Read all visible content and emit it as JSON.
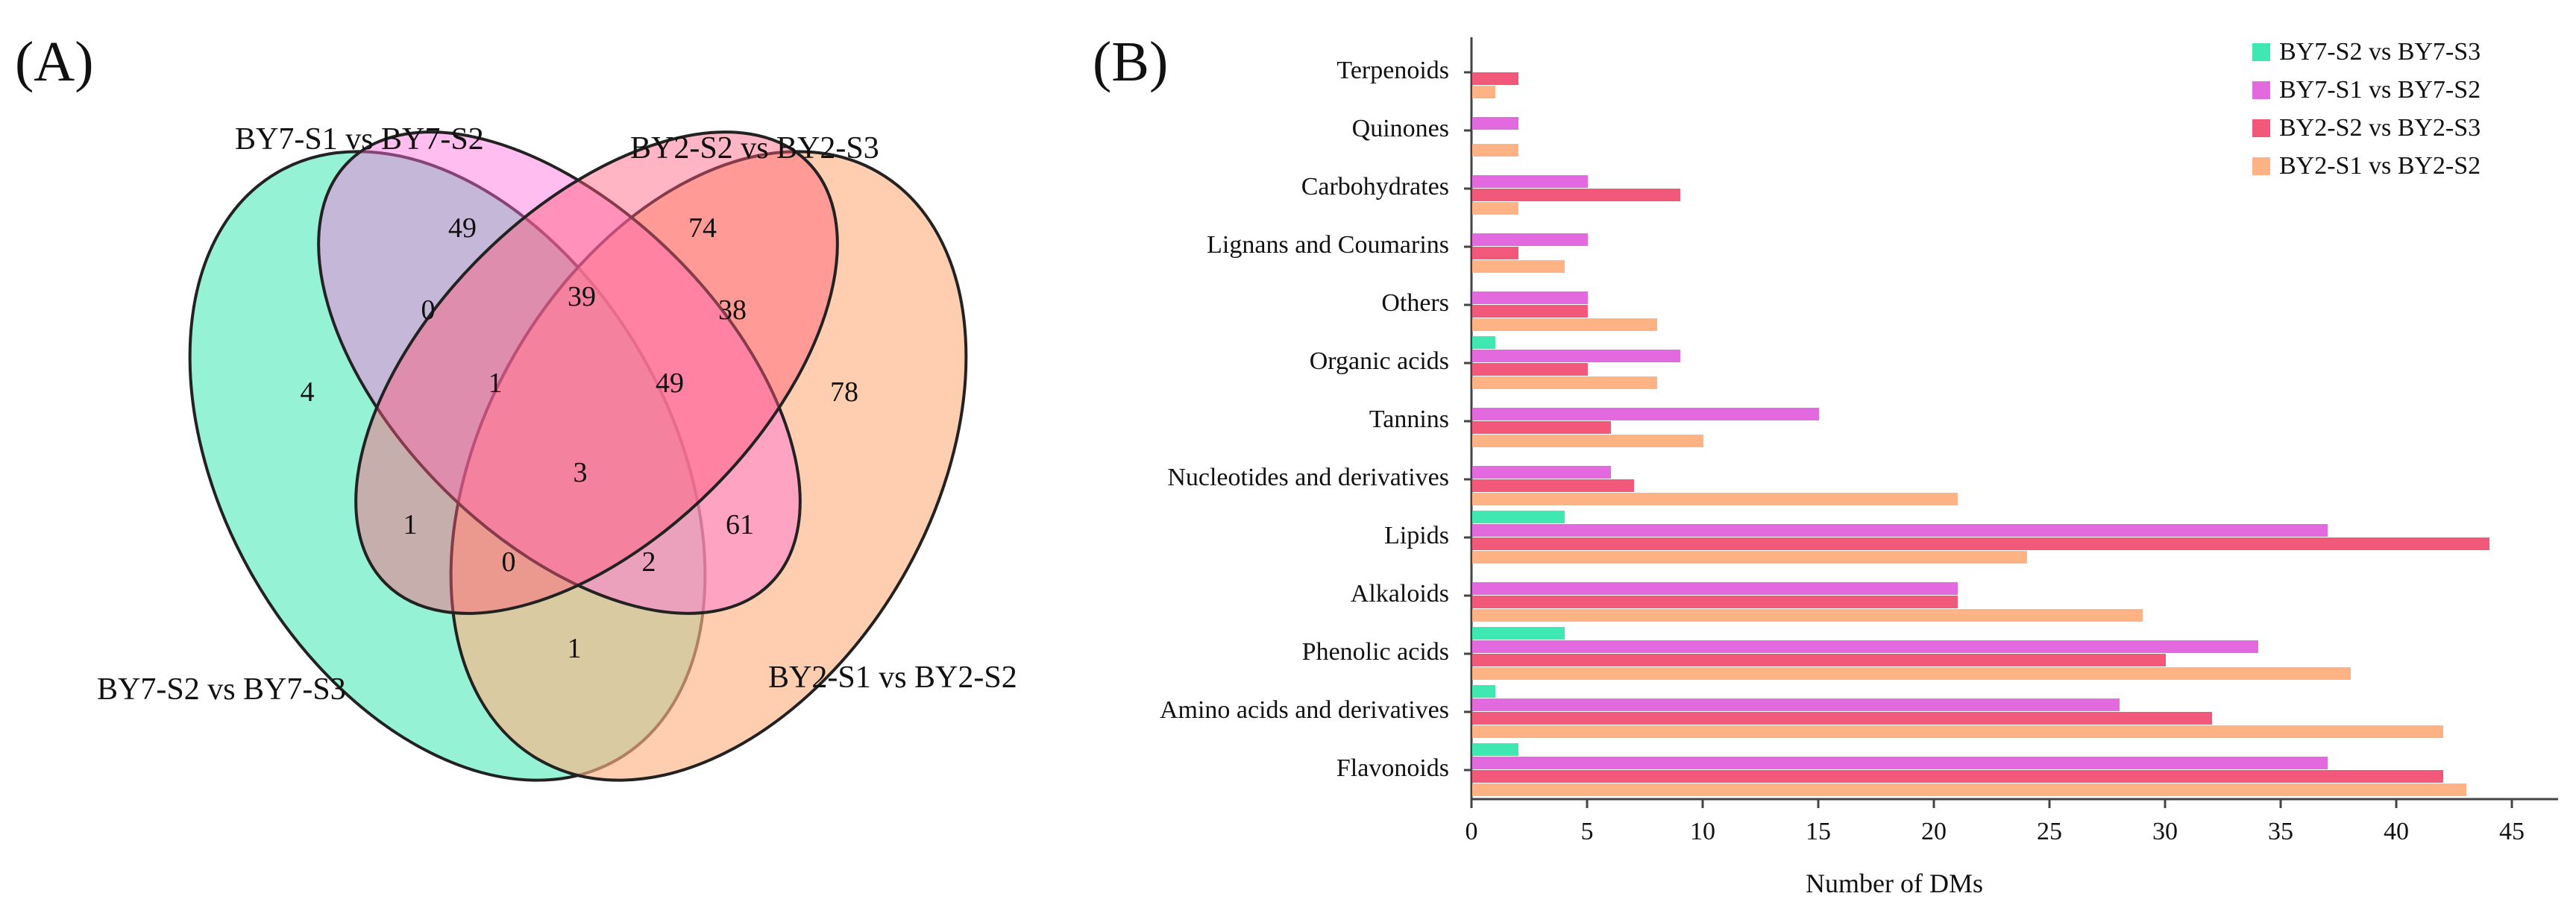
{
  "colors": {
    "BY7-S2 vs BY7-S3": "#3ee8b0",
    "BY7-S1 vs BY7-S2": "#e26ade",
    "BY2-S2 vs BY2-S3": "#f2587a",
    "BY2-S1 vs BY2-S2": "#ffb385",
    "axis": "#444444",
    "text": "#111111"
  },
  "chart_data": [
    {
      "type": "venn",
      "panel_label": "(A)",
      "sets": [
        "BY7-S1 vs BY7-S2",
        "BY2-S2 vs BY2-S3",
        "BY7-S2 vs BY7-S3",
        "BY2-S1 vs BY2-S2"
      ],
      "regions": {
        "only_BY7-S2_vs_BY7-S3": 4,
        "only_BY7-S1_vs_BY7-S2": 49,
        "only_BY2-S2_vs_BY2-S3": 74,
        "only_BY2-S1_vs_BY2-S2": 78,
        "BY7S2S3_BY7S1S2": 0,
        "BY7S1S2_BY2S2S3": 39,
        "BY2S2S3_BY2S1S2": 38,
        "BY7S2S3_BY7S1S2_BY2S2S3": 1,
        "BY7S1S2_BY2S2S3_BY2S1S2": 49,
        "all_four": 3,
        "BY7S2S3_BY2S2S3": 1,
        "BY7S1S2_BY2S1S2": 61,
        "BY7S2S3_BY2S2S3_BY2S1S2": 0,
        "BY7S2S3_BY7S1S2_BY2S1S2": 2,
        "BY7S2S3_BY2S1S2": 1
      }
    },
    {
      "type": "bar",
      "orientation": "horizontal",
      "panel_label": "(B)",
      "title": "",
      "xlabel": "Number of DMs",
      "ylabel": "",
      "xlim": [
        0,
        47
      ],
      "xticks": [
        0,
        5,
        10,
        15,
        20,
        25,
        30,
        35,
        40,
        45
      ],
      "legend_position": "top-right",
      "categories": [
        "Terpenoids",
        "Quinones",
        "Carbohydrates",
        "Lignans and Coumarins",
        "Others",
        "Organic acids",
        "Tannins",
        "Nucleotides and derivatives",
        "Lipids",
        "Alkaloids",
        "Phenolic acids",
        "Amino acids and derivatives",
        "Flavonoids"
      ],
      "series": [
        {
          "name": "BY7-S2 vs BY7-S3",
          "values": [
            0,
            0,
            0,
            0,
            0,
            1,
            0,
            0,
            4,
            0,
            4,
            1,
            2
          ]
        },
        {
          "name": "BY7-S1 vs BY7-S2",
          "values": [
            0,
            2,
            5,
            5,
            5,
            9,
            15,
            6,
            37,
            21,
            34,
            28,
            37
          ]
        },
        {
          "name": "BY2-S2 vs BY2-S3",
          "values": [
            2,
            0,
            9,
            2,
            5,
            5,
            6,
            7,
            44,
            21,
            30,
            32,
            42
          ]
        },
        {
          "name": "BY2-S1 vs BY2-S2",
          "values": [
            1,
            2,
            2,
            4,
            8,
            8,
            10,
            21,
            24,
            29,
            38,
            42,
            43
          ]
        }
      ]
    }
  ]
}
